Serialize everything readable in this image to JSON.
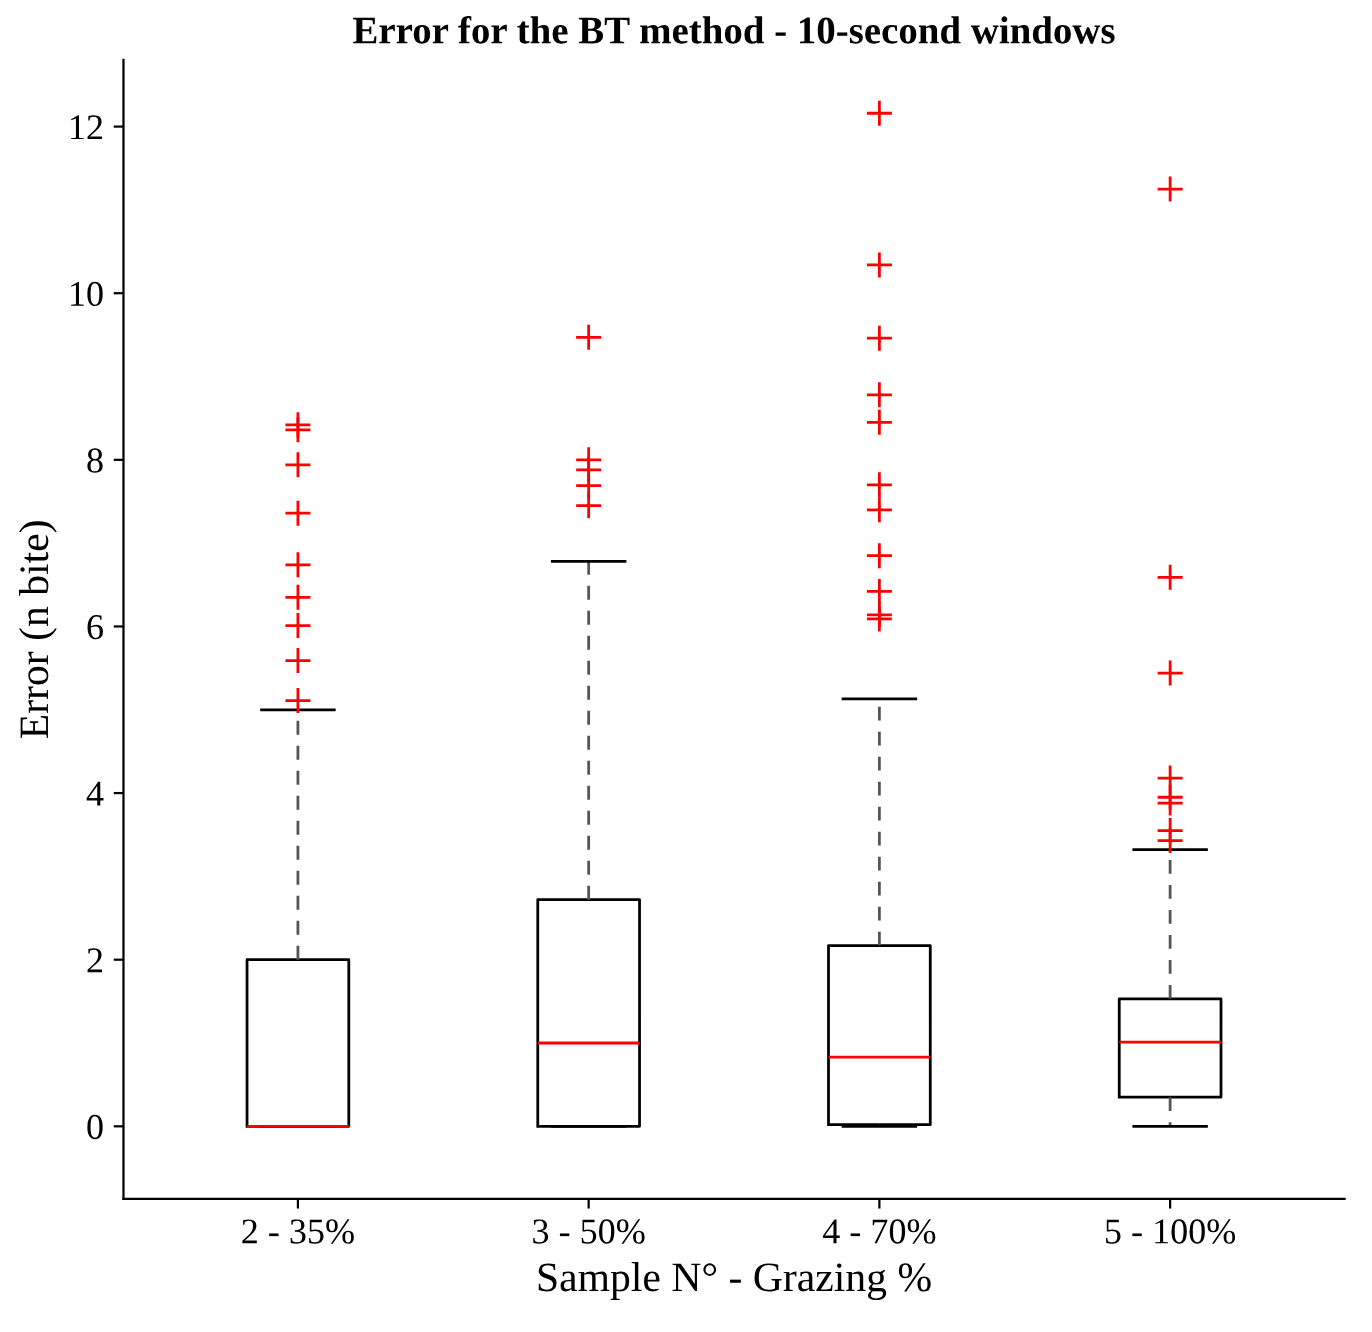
{
  "chart_data": {
    "type": "box",
    "title": "Error for the BT method - 10-second windows",
    "xlabel": "Sample N° - Grazing %",
    "ylabel": "Error (n bite)",
    "categories": [
      "2 - 35%",
      "3 - 50%",
      "4 - 70%",
      "5 - 100%"
    ],
    "boxes": [
      {
        "low": 0,
        "q1": 0,
        "median": 0,
        "q3": 2.0,
        "high": 5.0,
        "outliers": [
          8.42,
          8.36,
          7.94,
          7.36,
          6.74,
          6.35,
          6.01,
          5.59,
          5.11
        ]
      },
      {
        "low": 0,
        "q1": 0,
        "median": 1.0,
        "q3": 2.72,
        "high": 6.78,
        "outliers": [
          9.47,
          8.0,
          7.88,
          7.69,
          7.45
        ]
      },
      {
        "low": 0,
        "q1": 0.02,
        "median": 0.83,
        "q3": 2.17,
        "high": 5.13,
        "outliers": [
          12.16,
          10.34,
          9.46,
          8.78,
          8.45,
          7.7,
          7.4,
          6.85,
          6.42,
          6.14,
          6.09
        ]
      },
      {
        "low": 0,
        "q1": 0.35,
        "median": 1.01,
        "q3": 1.53,
        "high": 3.32,
        "outliers": [
          11.25,
          6.59,
          5.44,
          4.18,
          3.95,
          3.88,
          3.55,
          3.43
        ]
      }
    ],
    "color": "#000000",
    "marker": "cross",
    "line_style": "dashed",
    "ylim": [
      -0.87,
      12.8
    ],
    "yticks": [
      0,
      2,
      4,
      6,
      8,
      10,
      12
    ],
    "grid": false,
    "legend": false
  }
}
